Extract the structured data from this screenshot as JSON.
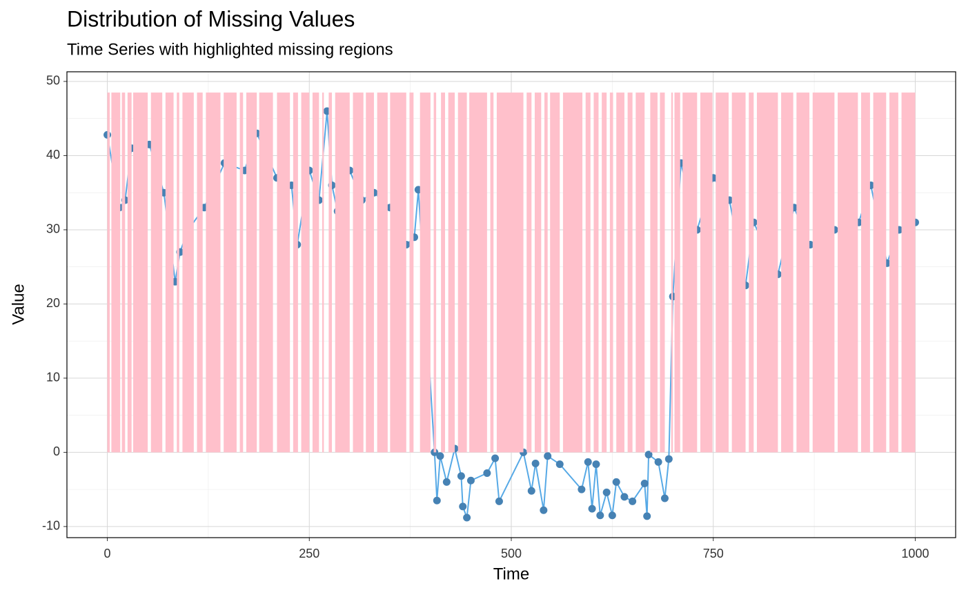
{
  "chart_data": {
    "type": "line",
    "title": "Distribution of Missing Values",
    "subtitle": "Time Series with highlighted missing regions",
    "x_label": "Time",
    "y_label": "Value",
    "xlim": [
      -50,
      1050
    ],
    "ylim": [
      -11.5,
      51.3
    ],
    "xticks": [
      0,
      250,
      500,
      750,
      1000
    ],
    "yticks": [
      -10,
      0,
      10,
      20,
      30,
      40,
      50
    ],
    "minor_xticks": [
      125,
      375,
      625,
      875
    ],
    "minor_yticks": [
      -5,
      5,
      15,
      25,
      35,
      45
    ],
    "grid": true,
    "series": [
      {
        "name": "Value",
        "color": "#56a9e6",
        "point_color": "#4682b4",
        "x": [
          0,
          15,
          22,
          30,
          52,
          70,
          84,
          90,
          100,
          120,
          145,
          170,
          185,
          210,
          228,
          235,
          250,
          262,
          272,
          278,
          285,
          300,
          315,
          330,
          350,
          370,
          380,
          385,
          405,
          408,
          412,
          420,
          430,
          438,
          440,
          445,
          450,
          470,
          480,
          485,
          515,
          525,
          530,
          540,
          545,
          560,
          587,
          595,
          600,
          605,
          610,
          618,
          625,
          630,
          640,
          650,
          665,
          668,
          670,
          682,
          690,
          695,
          700,
          710,
          730,
          750,
          770,
          790,
          800,
          830,
          850,
          870,
          900,
          930,
          945,
          965,
          980,
          1000
        ],
        "values": [
          42.8,
          33,
          34,
          41,
          41.5,
          35,
          23,
          27,
          30,
          33,
          39,
          38,
          43,
          37,
          36,
          28,
          38,
          34,
          46,
          36,
          32.5,
          38,
          34,
          35,
          33,
          28,
          29,
          35.4,
          0,
          -6.5,
          -0.5,
          -4,
          0.5,
          -3.2,
          -7.3,
          -8.8,
          -3.8,
          -2.8,
          -0.8,
          -6.6,
          0,
          -5.2,
          -1.5,
          -7.8,
          -0.5,
          -1.6,
          -5,
          -1.3,
          -7.6,
          -1.6,
          -8.5,
          -5.4,
          -8.5,
          -4,
          -6,
          -6.6,
          -4.2,
          -8.6,
          -0.3,
          -1.3,
          -6.2,
          -0.9,
          21,
          39,
          30,
          37,
          34,
          22.5,
          31,
          24,
          33,
          28,
          30,
          31,
          36,
          25.5,
          30,
          31
        ]
      }
    ],
    "region_color": "#ffc0cb",
    "region_ylim": [
      0,
      48.5
    ],
    "missing_regions": [
      {
        "start": 0,
        "end": 3
      },
      {
        "start": 5,
        "end": 16
      },
      {
        "start": 18,
        "end": 22
      },
      {
        "start": 25,
        "end": 30
      },
      {
        "start": 32,
        "end": 50
      },
      {
        "start": 54,
        "end": 68
      },
      {
        "start": 72,
        "end": 82
      },
      {
        "start": 86,
        "end": 89
      },
      {
        "start": 93,
        "end": 107
      },
      {
        "start": 111,
        "end": 118
      },
      {
        "start": 122,
        "end": 140
      },
      {
        "start": 144,
        "end": 160
      },
      {
        "start": 164,
        "end": 168
      },
      {
        "start": 172,
        "end": 185
      },
      {
        "start": 188,
        "end": 205
      },
      {
        "start": 210,
        "end": 226
      },
      {
        "start": 230,
        "end": 236
      },
      {
        "start": 240,
        "end": 250
      },
      {
        "start": 254,
        "end": 262
      },
      {
        "start": 266,
        "end": 268
      },
      {
        "start": 274,
        "end": 278
      },
      {
        "start": 282,
        "end": 300
      },
      {
        "start": 304,
        "end": 317
      },
      {
        "start": 320,
        "end": 330
      },
      {
        "start": 334,
        "end": 347
      },
      {
        "start": 350,
        "end": 370
      },
      {
        "start": 374,
        "end": 379
      },
      {
        "start": 387,
        "end": 400
      },
      {
        "start": 404,
        "end": 407
      },
      {
        "start": 413,
        "end": 418
      },
      {
        "start": 422,
        "end": 430
      },
      {
        "start": 434,
        "end": 445
      },
      {
        "start": 448,
        "end": 470
      },
      {
        "start": 474,
        "end": 478
      },
      {
        "start": 482,
        "end": 515
      },
      {
        "start": 519,
        "end": 525
      },
      {
        "start": 529,
        "end": 537
      },
      {
        "start": 541,
        "end": 545
      },
      {
        "start": 548,
        "end": 560
      },
      {
        "start": 564,
        "end": 588
      },
      {
        "start": 592,
        "end": 598
      },
      {
        "start": 602,
        "end": 608
      },
      {
        "start": 612,
        "end": 618
      },
      {
        "start": 622,
        "end": 626
      },
      {
        "start": 630,
        "end": 640
      },
      {
        "start": 644,
        "end": 650
      },
      {
        "start": 654,
        "end": 665
      },
      {
        "start": 672,
        "end": 681
      },
      {
        "start": 684,
        "end": 690
      },
      {
        "start": 698,
        "end": 700
      },
      {
        "start": 702,
        "end": 709
      },
      {
        "start": 712,
        "end": 730
      },
      {
        "start": 734,
        "end": 749
      },
      {
        "start": 753,
        "end": 769
      },
      {
        "start": 773,
        "end": 790
      },
      {
        "start": 794,
        "end": 800
      },
      {
        "start": 804,
        "end": 830
      },
      {
        "start": 834,
        "end": 849
      },
      {
        "start": 853,
        "end": 869
      },
      {
        "start": 873,
        "end": 900
      },
      {
        "start": 904,
        "end": 929
      },
      {
        "start": 933,
        "end": 944
      },
      {
        "start": 948,
        "end": 964
      },
      {
        "start": 968,
        "end": 979
      },
      {
        "start": 983,
        "end": 1000
      }
    ]
  }
}
